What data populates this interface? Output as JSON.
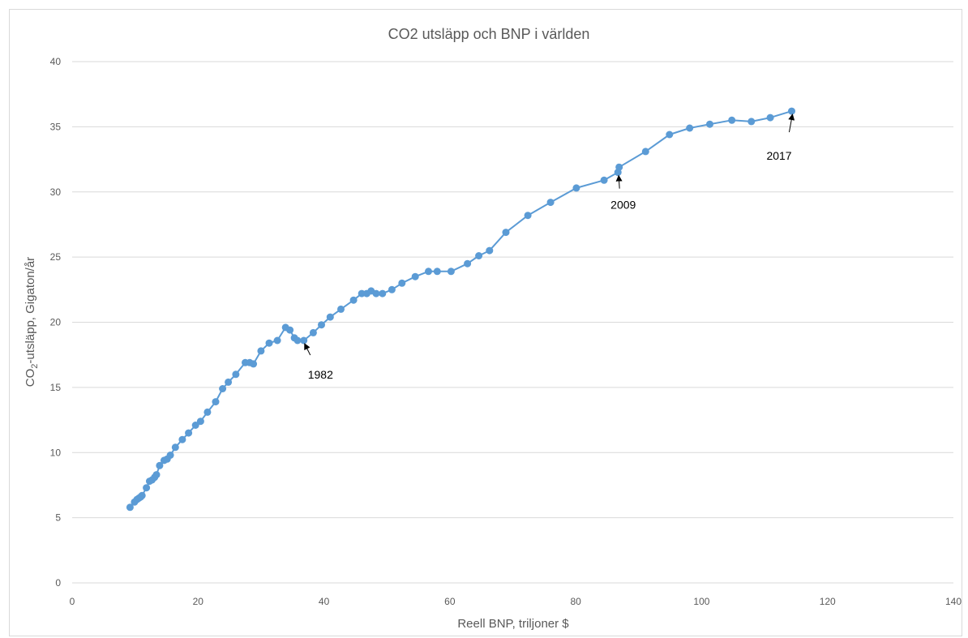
{
  "chart_data": {
    "type": "scatter",
    "title": "CO2 utsläpp och BNP i världen",
    "xlabel": "Reell BNP, triljoner $",
    "ylabel": {
      "prefix": "CO",
      "subscript": "2",
      "suffix": "-utsläpp, Gigaton/år"
    },
    "xlim": [
      0,
      140
    ],
    "ylim": [
      0,
      40
    ],
    "x_ticks": [
      0,
      20,
      40,
      60,
      80,
      100,
      120,
      140
    ],
    "y_ticks": [
      0,
      5,
      10,
      15,
      20,
      25,
      30,
      35,
      40
    ],
    "grid": "horizontal",
    "line_color": "#5b9bd5",
    "marker_color": "#5b9bd5",
    "series": [
      {
        "x": [
          9.2,
          9.9,
          10.3,
          10.6,
          10.9,
          11.1,
          11.8,
          12.3,
          12.7,
          13.1,
          13.4,
          13.9,
          14.6,
          15.1,
          15.6,
          16.4,
          17.5,
          18.5,
          19.6,
          20.4,
          21.5,
          22.8,
          23.9,
          24.8,
          26.0,
          27.5,
          28.2,
          28.8,
          30.0,
          31.3,
          32.6,
          33.9,
          34.6,
          35.3,
          35.8,
          36.8,
          38.3,
          39.6,
          41.0,
          42.7,
          44.7,
          46.0,
          46.8,
          47.5,
          48.3,
          49.3,
          50.8,
          52.4,
          54.5,
          56.6,
          58.0,
          60.2,
          62.8,
          64.6,
          66.3,
          68.9,
          72.4,
          76.0,
          80.1,
          84.5,
          86.7,
          86.9,
          91.1,
          94.9,
          98.1,
          101.3,
          104.8,
          107.9,
          110.9,
          114.3
        ],
        "y": [
          5.8,
          6.2,
          6.4,
          6.5,
          6.6,
          6.7,
          7.3,
          7.8,
          7.9,
          8.1,
          8.3,
          9.0,
          9.4,
          9.5,
          9.8,
          10.4,
          11.0,
          11.5,
          12.1,
          12.4,
          13.1,
          13.9,
          14.9,
          15.4,
          16.0,
          16.9,
          16.9,
          16.8,
          17.8,
          18.4,
          18.6,
          19.6,
          19.4,
          18.8,
          18.6,
          18.6,
          19.2,
          19.8,
          20.4,
          21.0,
          21.7,
          22.2,
          22.2,
          22.4,
          22.2,
          22.2,
          22.5,
          23.0,
          23.5,
          23.9,
          23.9,
          23.9,
          24.5,
          25.1,
          25.5,
          26.9,
          28.2,
          29.2,
          30.3,
          30.9,
          31.5,
          31.9,
          33.1,
          34.4,
          34.9,
          35.2,
          35.5,
          35.4,
          35.7,
          36.2
        ]
      }
    ],
    "annotations": [
      {
        "label": "1982",
        "x": 36.8,
        "y": 18.6
      },
      {
        "label": "2009",
        "x": 86.7,
        "y": 31.5
      },
      {
        "label": "2017",
        "x": 114.3,
        "y": 36.2
      }
    ]
  }
}
